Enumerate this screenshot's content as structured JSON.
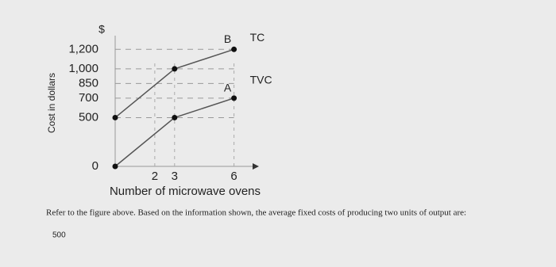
{
  "chart_data": {
    "type": "line",
    "y_unit": "$",
    "ylabel": "Cost in dollars",
    "xlabel": "Number of microwave ovens",
    "xlim": [
      0,
      7.5
    ],
    "xticks": [
      2,
      3,
      6
    ],
    "ylim": [
      0,
      1300
    ],
    "yticks": [
      0,
      500,
      700,
      850,
      {
        "value": 1000,
        "label": "1,000"
      },
      {
        "value": 1200,
        "label": "1,200"
      }
    ],
    "grid": true,
    "x": [
      0,
      3,
      6
    ],
    "series": [
      {
        "name": "TC",
        "color": "#555555",
        "values": [
          500,
          1000,
          1200
        ]
      },
      {
        "name": "TVC",
        "color": "#555555",
        "values": [
          0,
          500,
          700
        ]
      }
    ],
    "point_labels": [
      {
        "text": "B",
        "x": 6,
        "y": 1200
      },
      {
        "text": "A",
        "x": 6,
        "y": 700
      }
    ]
  },
  "question": "Refer to the figure above. Based on the information shown, the average fixed costs of producing two units of output are:",
  "answer": "500"
}
